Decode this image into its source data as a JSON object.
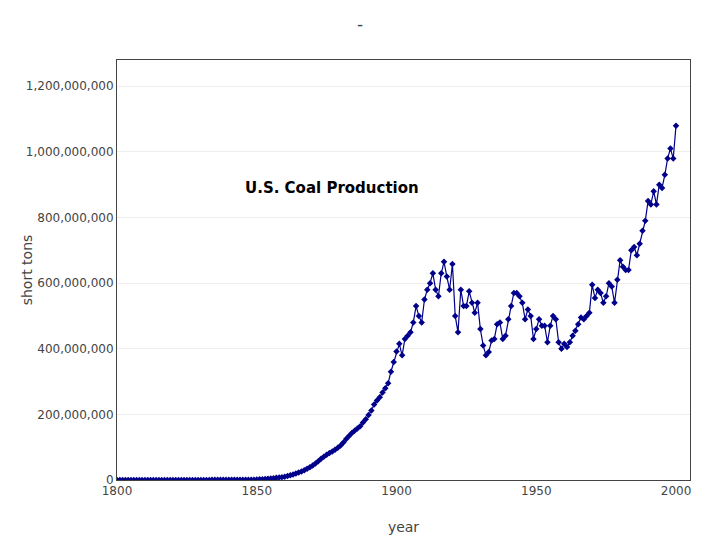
{
  "chart_data": {
    "type": "line",
    "title": "-",
    "annotation": "U.S. Coal Production",
    "xlabel": "year",
    "ylabel": "short tons",
    "xlim": [
      1800,
      2005
    ],
    "ylim": [
      0,
      1280000000
    ],
    "xticks": [
      1800,
      1850,
      1900,
      1950,
      2000
    ],
    "yticks": [
      0,
      {
        "value": 200000000,
        "label": "200,000,000"
      },
      {
        "value": 400000000,
        "label": "400,000,000"
      },
      {
        "value": 600000000,
        "label": "600,000,000"
      },
      {
        "value": 800000000,
        "label": "800,000,000"
      },
      {
        "value": 1000000000,
        "label": "1,000,000,000"
      },
      {
        "value": 1200000000,
        "label": "1,200,000,000"
      }
    ],
    "grid": "y",
    "color": "#00008B",
    "marker": "diamond",
    "x": [
      1800,
      1801,
      1802,
      1803,
      1804,
      1805,
      1806,
      1807,
      1808,
      1809,
      1810,
      1811,
      1812,
      1813,
      1814,
      1815,
      1816,
      1817,
      1818,
      1819,
      1820,
      1821,
      1822,
      1823,
      1824,
      1825,
      1826,
      1827,
      1828,
      1829,
      1830,
      1831,
      1832,
      1833,
      1834,
      1835,
      1836,
      1837,
      1838,
      1839,
      1840,
      1841,
      1842,
      1843,
      1844,
      1845,
      1846,
      1847,
      1848,
      1849,
      1850,
      1851,
      1852,
      1853,
      1854,
      1855,
      1856,
      1857,
      1858,
      1859,
      1860,
      1861,
      1862,
      1863,
      1864,
      1865,
      1866,
      1867,
      1868,
      1869,
      1870,
      1871,
      1872,
      1873,
      1874,
      1875,
      1876,
      1877,
      1878,
      1879,
      1880,
      1881,
      1882,
      1883,
      1884,
      1885,
      1886,
      1887,
      1888,
      1889,
      1890,
      1891,
      1892,
      1893,
      1894,
      1895,
      1896,
      1897,
      1898,
      1899,
      1900,
      1901,
      1902,
      1903,
      1904,
      1905,
      1906,
      1907,
      1908,
      1909,
      1910,
      1911,
      1912,
      1913,
      1914,
      1915,
      1916,
      1917,
      1918,
      1919,
      1920,
      1921,
      1922,
      1923,
      1924,
      1925,
      1926,
      1927,
      1928,
      1929,
      1930,
      1931,
      1932,
      1933,
      1934,
      1935,
      1936,
      1937,
      1938,
      1939,
      1940,
      1941,
      1942,
      1943,
      1944,
      1945,
      1946,
      1947,
      1948,
      1949,
      1950,
      1951,
      1952,
      1953,
      1954,
      1955,
      1956,
      1957,
      1958,
      1959,
      1960,
      1961,
      1962,
      1963,
      1964,
      1965,
      1966,
      1967,
      1968,
      1969,
      1970,
      1971,
      1972,
      1973,
      1974,
      1975,
      1976,
      1977,
      1978,
      1979,
      1980,
      1981,
      1982,
      1983,
      1984,
      1985,
      1986,
      1987,
      1988,
      1989,
      1990,
      1991,
      1992,
      1993,
      1994,
      1995,
      1996,
      1997,
      1998,
      1999,
      2000
    ],
    "values": [
      108000,
      110000,
      112000,
      115000,
      118000,
      120000,
      125000,
      130000,
      133000,
      136000,
      140000,
      145000,
      150000,
      155000,
      160000,
      165000,
      170000,
      175000,
      180000,
      185000,
      192000,
      200000,
      210000,
      220000,
      230000,
      245000,
      260000,
      275000,
      290000,
      305000,
      320000,
      340000,
      360000,
      380000,
      400000,
      425000,
      450000,
      475000,
      500000,
      530000,
      560000,
      600000,
      640000,
      680000,
      720000,
      770000,
      820000,
      880000,
      940000,
      1000000,
      1500000,
      2000000,
      2600000,
      3300000,
      4000000,
      4800000,
      5600000,
      6600000,
      7600000,
      8700000,
      10000000,
      12000000,
      14500000,
      17000000,
      20000000,
      23000000,
      26000000,
      30000000,
      34000000,
      39000000,
      44000000,
      50000000,
      57000000,
      65000000,
      71000000,
      77000000,
      82000000,
      87000000,
      92000000,
      98000000,
      105000000,
      114000000,
      125000000,
      134000000,
      143000000,
      150000000,
      157000000,
      164000000,
      175000000,
      185000000,
      198000000,
      212000000,
      230000000,
      242000000,
      252000000,
      267000000,
      280000000,
      295000000,
      330000000,
      360000000,
      392000000,
      415000000,
      380000000,
      430000000,
      440000000,
      450000000,
      480000000,
      530000000,
      500000000,
      480000000,
      550000000,
      580000000,
      600000000,
      630000000,
      580000000,
      560000000,
      630000000,
      665000000,
      620000000,
      580000000,
      658000000,
      500000000,
      450000000,
      580000000,
      530000000,
      530000000,
      575000000,
      540000000,
      510000000,
      540000000,
      460000000,
      410000000,
      380000000,
      390000000,
      425000000,
      430000000,
      475000000,
      480000000,
      430000000,
      440000000,
      490000000,
      530000000,
      570000000,
      570000000,
      560000000,
      540000000,
      490000000,
      520000000,
      500000000,
      430000000,
      460000000,
      490000000,
      470000000,
      470000000,
      420000000,
      470000000,
      500000000,
      490000000,
      420000000,
      400000000,
      415000000,
      405000000,
      420000000,
      440000000,
      455000000,
      475000000,
      495000000,
      490000000,
      500000000,
      510000000,
      595000000,
      555000000,
      580000000,
      570000000,
      540000000,
      560000000,
      600000000,
      590000000,
      540000000,
      610000000,
      670000000,
      650000000,
      640000000,
      640000000,
      700000000,
      710000000,
      685000000,
      720000000,
      760000000,
      790000000,
      850000000,
      840000000,
      880000000,
      840000000,
      900000000,
      890000000,
      930000000,
      980000000,
      1010000000,
      980000000,
      1080000000
    ]
  }
}
